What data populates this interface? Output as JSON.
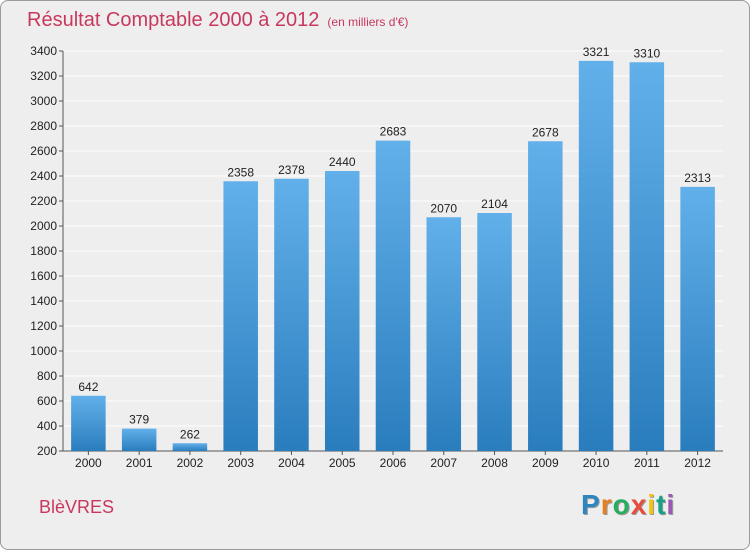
{
  "chart_data": {
    "type": "bar",
    "title": "Résultat Comptable 2000 à 2012",
    "subtitle": "(en milliers d'€)",
    "categories": [
      "2000",
      "2001",
      "2002",
      "2003",
      "2004",
      "2005",
      "2006",
      "2007",
      "2008",
      "2009",
      "2010",
      "2011",
      "2012"
    ],
    "values": [
      642,
      379,
      262,
      2358,
      2378,
      2440,
      2683,
      2070,
      2104,
      2678,
      3321,
      3310,
      2313
    ],
    "ylim": [
      200,
      3400
    ],
    "yticks": [
      200,
      400,
      600,
      800,
      1000,
      1200,
      1400,
      1600,
      1800,
      2000,
      2200,
      2400,
      2600,
      2800,
      3000,
      3200,
      3400
    ],
    "xlabel": "",
    "ylabel": "",
    "grid": true
  },
  "commune": "BlèVRES",
  "logo": {
    "letters": [
      "P",
      "r",
      "o",
      "x",
      "i",
      "t",
      "i"
    ],
    "colors": [
      "#2e86c1",
      "#e67e22",
      "#27ae60",
      "#e74c3c",
      "#f1c40f",
      "#16a085",
      "#9b59b6"
    ]
  },
  "colors": {
    "title": "#c8385e",
    "bar_top": "#62b0ea",
    "bar_bottom": "#2a7dbd",
    "grid": "#ffffff"
  }
}
